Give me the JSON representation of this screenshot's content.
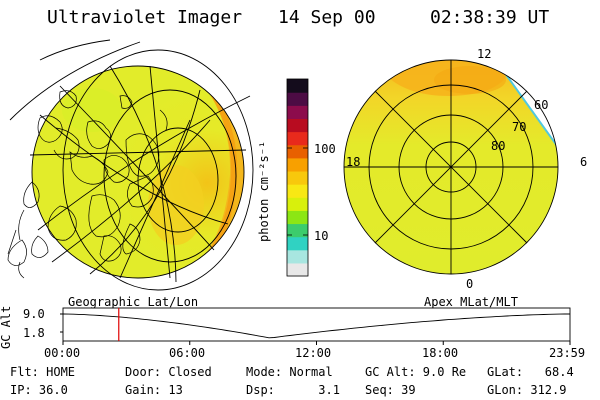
{
  "header": {
    "title": "Ultraviolet Imager",
    "date": "14 Sep 00",
    "time": "02:38:39 UT"
  },
  "colorbar": {
    "unit_label": "photon cm⁻²s⁻¹",
    "tick_100": "100",
    "tick_10": "10",
    "stops": [
      "#e8e8e8",
      "#a8e6e0",
      "#30d2c2",
      "#3ccc6c",
      "#8ce614",
      "#d8f00c",
      "#f8e814",
      "#f8c80c",
      "#f8a000",
      "#e86000",
      "#e82a1c",
      "#b80c20",
      "#8c0c4c",
      "#4c0c44",
      "#140c1c"
    ]
  },
  "left_map": {
    "label": "Geographic Lat/Lon"
  },
  "right_map": {
    "label": "Apex MLat/MLT",
    "mlt_labels": {
      "top": "12",
      "left": "18",
      "right": "6",
      "bottom": "0"
    },
    "lat_labels": [
      "60",
      "70",
      "80"
    ]
  },
  "altitude_plot": {
    "axis_label": "GC Alt",
    "y_ticks": [
      "9.0",
      "1.8"
    ],
    "x_ticks": [
      "00:00",
      "06:00",
      "12:00",
      "18:00",
      "23:59"
    ],
    "y_range": [
      1.8,
      9.0
    ],
    "current_time_hours": 2.64,
    "colors": {
      "curve": "#000000",
      "cursor": "#e00000"
    }
  },
  "info": {
    "flt": "Flt: HOME",
    "ip": "IP: 36.0",
    "door": "Door: Closed",
    "gain": "Gain: 13",
    "mode": "Mode: Normal",
    "dsp": "Dsp:      3.1",
    "gcalt": "GC Alt: 9.0 Re",
    "seq": "Seq: 39",
    "glat": "GLat:   68.4",
    "glon": "GLon: 312.9"
  }
}
